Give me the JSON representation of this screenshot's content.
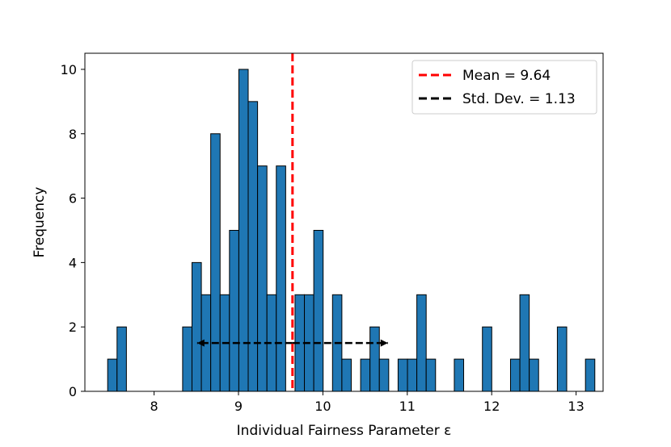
{
  "chart_data": {
    "type": "bar",
    "xlabel": "Individual Fairness Parameter ε",
    "ylabel": "Frequency",
    "xlim": [
      7.18,
      13.32
    ],
    "ylim": [
      0,
      10.5
    ],
    "x_ticks": [
      8,
      9,
      10,
      11,
      12,
      13
    ],
    "y_ticks": [
      0,
      2,
      4,
      6,
      8,
      10
    ],
    "bin_start": 7.45,
    "bin_width": 0.111,
    "values": [
      1,
      2,
      0,
      0,
      0,
      0,
      0,
      0,
      2,
      4,
      3,
      8,
      3,
      5,
      10,
      9,
      7,
      3,
      7,
      0,
      3,
      3,
      5,
      0,
      3,
      1,
      0,
      1,
      2,
      1,
      0,
      1,
      1,
      3,
      1,
      0,
      0,
      1,
      0,
      0,
      2,
      0,
      0,
      1,
      3,
      1,
      0,
      0,
      2,
      0,
      0,
      1
    ],
    "bar_color": "#1f77b4",
    "bar_edge_color": "#000000",
    "mean": {
      "value": 9.64,
      "color": "#ff0000",
      "label": "Mean = 9.64"
    },
    "std": {
      "value": 1.13,
      "y": 1.5,
      "color": "#000000",
      "label": "Std. Dev. = 1.13"
    },
    "legend_position": "top-right"
  }
}
